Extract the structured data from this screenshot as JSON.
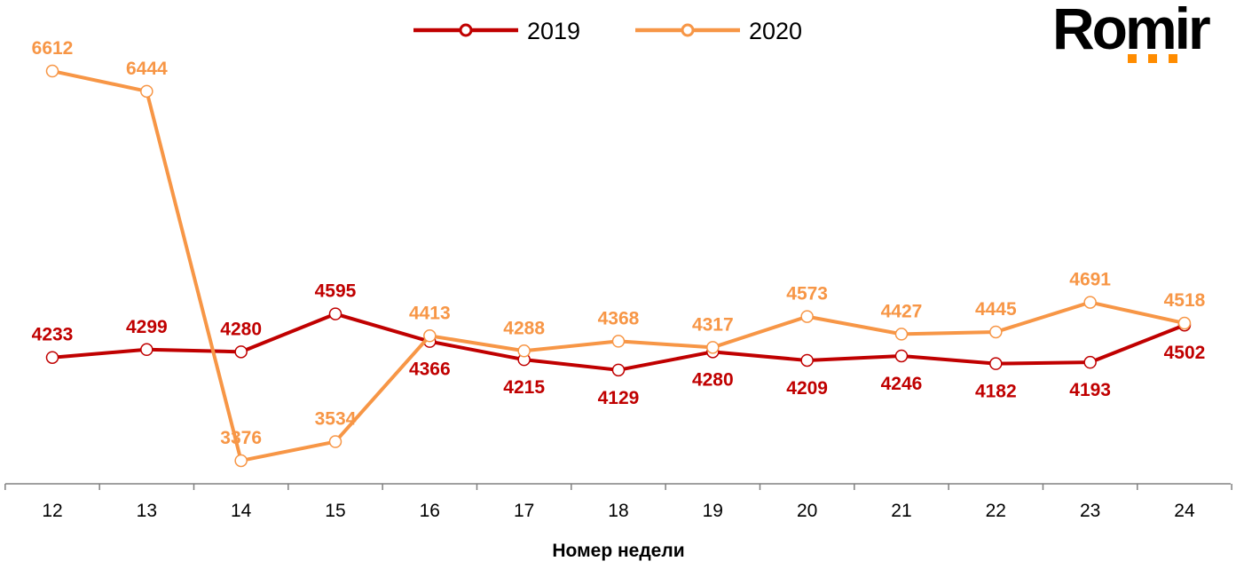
{
  "chart_data": {
    "type": "line",
    "title": "",
    "xlabel": "Номер недели",
    "ylabel": "",
    "categories": [
      "12",
      "13",
      "14",
      "15",
      "16",
      "17",
      "18",
      "19",
      "20",
      "21",
      "22",
      "23",
      "24"
    ],
    "series": [
      {
        "name": "2019",
        "color": "#C00000",
        "values": [
          4233,
          4299,
          4280,
          4595,
          4366,
          4215,
          4129,
          4280,
          4209,
          4246,
          4182,
          4193,
          4502
        ]
      },
      {
        "name": "2020",
        "color": "#F79646",
        "values": [
          6612,
          6444,
          3376,
          3534,
          4413,
          4288,
          4368,
          4317,
          4573,
          4427,
          4445,
          4691,
          4518
        ]
      }
    ],
    "ylim": [
      3184,
      7202
    ],
    "grid": false,
    "legend": "top-center",
    "marker": "hollow-circle"
  },
  "logo": {
    "text": "Romir",
    "accent_color": "#FF8C00"
  }
}
